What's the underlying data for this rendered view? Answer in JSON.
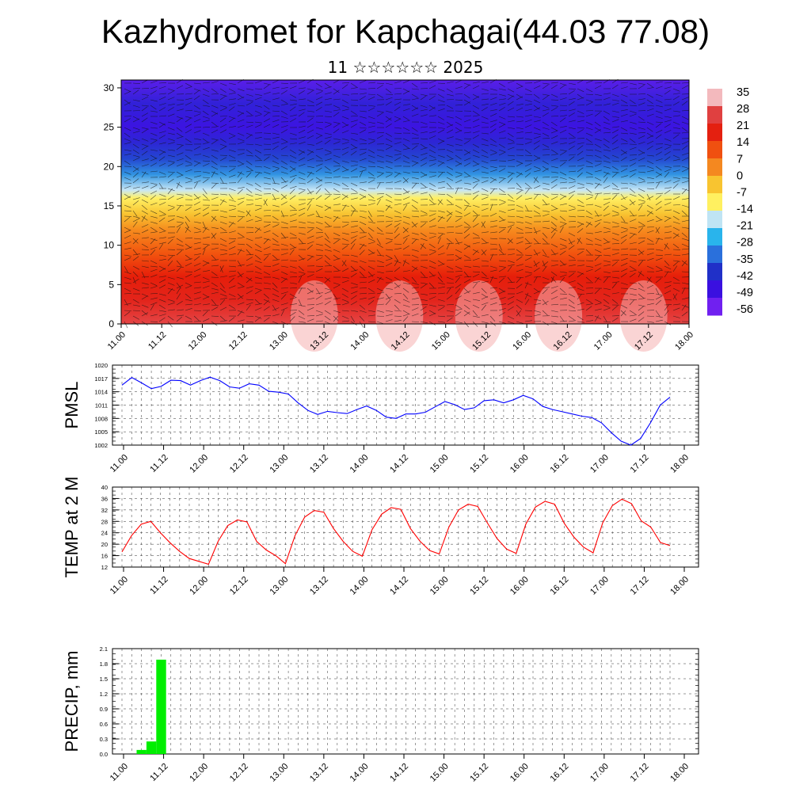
{
  "title": "Kazhydromet for Kapchagai(44.03 77.08)",
  "subtitle": "11 ☆☆☆☆☆☆ 2025",
  "time_labels": [
    "11.00",
    "11.12",
    "12.00",
    "12.12",
    "13.00",
    "13.12",
    "14.00",
    "14.12",
    "15.00",
    "15.12",
    "16.00",
    "16.12",
    "17.00",
    "17.12",
    "18.00"
  ],
  "colorbar": {
    "labels": [
      "35",
      "28",
      "21",
      "14",
      "7",
      "0",
      "-7",
      "-14",
      "-21",
      "-28",
      "-35",
      "-42",
      "-49",
      "-56"
    ],
    "colors": [
      "#f3b9bd",
      "#e04040",
      "#e42010",
      "#f05010",
      "#f48820",
      "#f8c430",
      "#fff060",
      "#bfe4f4",
      "#29b4ec",
      "#2a70dc",
      "#2030c8",
      "#3a10e0",
      "#7020f0"
    ]
  },
  "chart_data": [
    {
      "type": "heatmap",
      "title": "Kazhydromet for Kapchagai(44.03 77.08)",
      "subtitle": "11 ☆☆☆☆☆☆ 2025",
      "xlabel": "",
      "ylabel": "",
      "ylim": [
        0,
        31
      ],
      "y_ticks": [
        "0",
        "5",
        "10",
        "15",
        "20",
        "25",
        "30"
      ],
      "x_ticks": [
        "11.00",
        "11.12",
        "12.00",
        "12.12",
        "13.00",
        "13.12",
        "14.00",
        "14.12",
        "15.00",
        "15.12",
        "16.00",
        "16.12",
        "17.00",
        "17.12",
        "18.00"
      ],
      "color_scale_labels": [
        "35",
        "28",
        "21",
        "14",
        "7",
        "0",
        "-7",
        "-14",
        "-21",
        "-28",
        "-35",
        "-42",
        "-49",
        "-56"
      ],
      "profile_levels": [
        0,
        3,
        6,
        9,
        12,
        14,
        16,
        17,
        19,
        21,
        23,
        25,
        28,
        31
      ],
      "profile_values": [
        31,
        26,
        21,
        14,
        7,
        0,
        -7,
        -14,
        -25,
        -38,
        -47,
        -56,
        -50,
        -58
      ],
      "wind_barbs": true
    },
    {
      "type": "line",
      "ylabel": "PMSL",
      "ylim": [
        1002,
        1020
      ],
      "y_ticks": [
        "1002",
        "1005",
        "1008",
        "1011",
        "1014",
        "1017",
        "1020"
      ],
      "x_ticks": [
        "11.00",
        "11.12",
        "12.00",
        "12.12",
        "13.00",
        "13.12",
        "14.00",
        "14.12",
        "15.00",
        "15.12",
        "16.00",
        "16.12",
        "17.00",
        "17.12",
        "18.00"
      ],
      "series": [
        {
          "color": "#0000ff",
          "values": [
            1015.5,
            1017.2,
            1016.0,
            1014.7,
            1015.2,
            1016.6,
            1016.5,
            1015.5,
            1016.5,
            1017.3,
            1016.5,
            1015.1,
            1014.8,
            1015.8,
            1015.5,
            1014.1,
            1013.9,
            1013.5,
            1011.5,
            1009.8,
            1008.9,
            1009.6,
            1009.3,
            1009.1,
            1010.0,
            1010.8,
            1009.8,
            1008.3,
            1008.0,
            1009.0,
            1009.0,
            1009.4,
            1010.6,
            1011.8,
            1011.1,
            1010.0,
            1010.4,
            1012.0,
            1012.2,
            1011.5,
            1012.2,
            1013.2,
            1012.4,
            1010.7,
            1010.0,
            1009.5,
            1009.0,
            1008.5,
            1008.2,
            1007.0,
            1004.8,
            1002.9,
            1002.0,
            1003.5,
            1007.0,
            1011.0,
            1012.8
          ]
        }
      ]
    },
    {
      "type": "line",
      "ylabel": "TEMP at 2 M",
      "ylim": [
        12,
        40
      ],
      "y_ticks": [
        "12",
        "16",
        "20",
        "24",
        "28",
        "32",
        "36",
        "40"
      ],
      "x_ticks": [
        "11.00",
        "11.12",
        "12.00",
        "12.12",
        "13.00",
        "13.12",
        "14.00",
        "14.12",
        "15.00",
        "15.12",
        "16.00",
        "16.12",
        "17.00",
        "17.12",
        "18.00"
      ],
      "series": [
        {
          "color": "#ff0000",
          "values": [
            17.3,
            23.0,
            27.0,
            28.0,
            24.0,
            20.5,
            17.5,
            15.0,
            14.0,
            13.0,
            21.0,
            26.5,
            28.5,
            27.8,
            21.0,
            18.0,
            16.0,
            13.2,
            23.0,
            29.5,
            31.8,
            31.2,
            25.5,
            21.0,
            17.5,
            15.8,
            25.0,
            30.5,
            32.8,
            32.2,
            25.5,
            21.0,
            17.8,
            16.6,
            26.0,
            32.0,
            34.0,
            33.2,
            27.5,
            22.0,
            18.3,
            16.8,
            27.0,
            33.0,
            35.0,
            34.0,
            27.3,
            22.5,
            19.0,
            17.0,
            27.5,
            33.5,
            35.8,
            34.2,
            28.2,
            26.0,
            20.6,
            19.5
          ]
        }
      ]
    },
    {
      "type": "bar",
      "ylabel": "PRECIP, mm",
      "ylim": [
        0,
        2.1
      ],
      "y_ticks": [
        "0.0",
        "0.3",
        "0.6",
        "0.9",
        "1.2",
        "1.5",
        "1.8",
        "2.1"
      ],
      "x_ticks": [
        "11.00",
        "11.12",
        "12.00",
        "12.12",
        "13.00",
        "13.12",
        "14.00",
        "14.12",
        "15.00",
        "15.12",
        "16.00",
        "16.12",
        "17.00",
        "17.12",
        "18.00"
      ],
      "series": [
        {
          "color": "#00ee00",
          "values": [
            0,
            0,
            0.08,
            0.25,
            1.88,
            0,
            0,
            0,
            0,
            0,
            0,
            0,
            0,
            0,
            0,
            0,
            0,
            0,
            0,
            0,
            0,
            0,
            0,
            0,
            0,
            0,
            0,
            0,
            0,
            0,
            0,
            0,
            0,
            0,
            0,
            0,
            0,
            0,
            0,
            0,
            0,
            0,
            0,
            0,
            0,
            0,
            0,
            0,
            0,
            0,
            0,
            0,
            0,
            0,
            0,
            0,
            0
          ]
        }
      ]
    }
  ]
}
